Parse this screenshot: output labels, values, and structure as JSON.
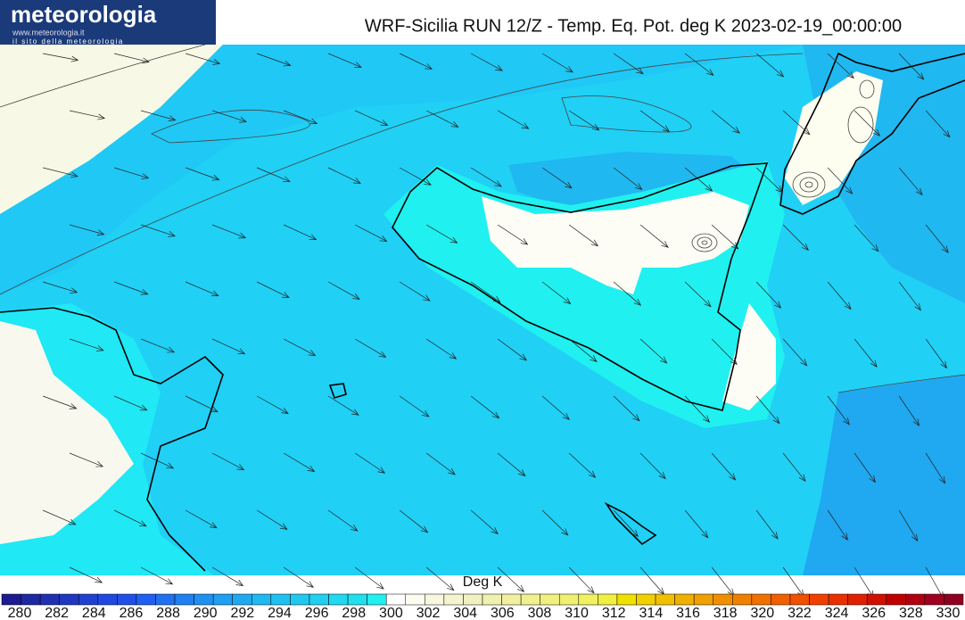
{
  "header": {
    "logo": "meteorologia",
    "logo_url": "www.meteorologia.it",
    "logo_tagline": "il sito della meteorologia",
    "title": "WRF-Sicilia RUN 12/Z - Temp. Eq. Pot. deg K 2023-02-19_00:00:00"
  },
  "legend": {
    "label": "Deg K",
    "ticks": [
      280,
      282,
      284,
      286,
      288,
      290,
      292,
      294,
      296,
      298,
      300,
      302,
      304,
      306,
      308,
      310,
      312,
      314,
      316,
      318,
      320,
      322,
      324,
      326,
      328,
      330
    ],
    "colors": [
      "#1c1c90",
      "#1e28a0",
      "#2030b0",
      "#2038c0",
      "#2040d0",
      "#2048e0",
      "#2050e8",
      "#2060f0",
      "#2070f0",
      "#2080f0",
      "#2090f0",
      "#20a0f0",
      "#20a8f0",
      "#20b8f0",
      "#20c0f0",
      "#20c8f0",
      "#20d0f0",
      "#20d8f0",
      "#20e0f0",
      "#20f0f0",
      "#ffffff",
      "#fcfcf0",
      "#f8f8e0",
      "#f4f4d0",
      "#f0f0c0",
      "#f0f0b0",
      "#f0f0a0",
      "#f0f090",
      "#f0f080",
      "#f0f070",
      "#f0f060",
      "#f0f040",
      "#f0e000",
      "#f0d000",
      "#f0c000",
      "#f0b000",
      "#f0a000",
      "#f09000",
      "#f08000",
      "#f07000",
      "#f06000",
      "#f05000",
      "#f04000",
      "#e83000",
      "#e02000",
      "#d01000",
      "#c00000",
      "#b00010",
      "#a00020",
      "#900020"
    ]
  }
}
